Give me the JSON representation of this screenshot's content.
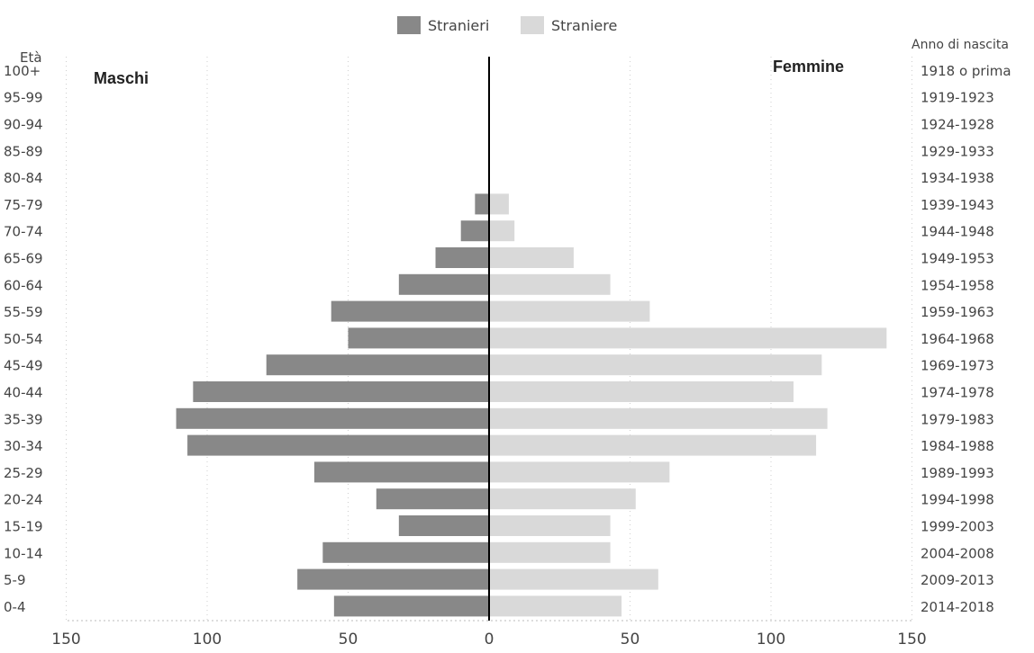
{
  "chart_data": {
    "type": "bar",
    "orientation": "horizontal",
    "subtype": "population-pyramid",
    "legend": {
      "position": "top-center",
      "items": [
        {
          "label": "Stranieri",
          "color": "#888888"
        },
        {
          "label": "Straniere",
          "color": "#d9d9d9"
        }
      ]
    },
    "left_axis_title": "Età",
    "right_axis_title": "Anno di nascita",
    "left_group_label": "Maschi",
    "right_group_label": "Femmine",
    "categories": [
      "0-4",
      "5-9",
      "10-14",
      "15-19",
      "20-24",
      "25-29",
      "30-34",
      "35-39",
      "40-44",
      "45-49",
      "50-54",
      "55-59",
      "60-64",
      "65-69",
      "70-74",
      "75-79",
      "80-84",
      "85-89",
      "90-94",
      "95-99",
      "100+"
    ],
    "birth_years": [
      "2014-2018",
      "2009-2013",
      "2004-2008",
      "1999-2003",
      "1994-1998",
      "1989-1993",
      "1984-1988",
      "1979-1983",
      "1974-1978",
      "1969-1973",
      "1964-1968",
      "1959-1963",
      "1954-1958",
      "1949-1953",
      "1944-1948",
      "1939-1943",
      "1934-1938",
      "1929-1933",
      "1924-1928",
      "1919-1923",
      "1918 o prima"
    ],
    "series": [
      {
        "name": "Stranieri",
        "side": "left",
        "color": "#888888",
        "values": [
          55,
          68,
          59,
          32,
          40,
          62,
          107,
          111,
          105,
          79,
          50,
          56,
          32,
          19,
          10,
          5,
          0,
          0,
          0,
          0,
          0
        ]
      },
      {
        "name": "Straniere",
        "side": "right",
        "color": "#d9d9d9",
        "values": [
          47,
          60,
          43,
          43,
          52,
          64,
          116,
          120,
          108,
          118,
          141,
          57,
          43,
          30,
          9,
          7,
          0,
          0,
          0,
          0,
          0
        ]
      }
    ],
    "x_ticks": [
      "150",
      "100",
      "50",
      "0",
      "50",
      "100",
      "150"
    ],
    "xlim": [
      -150,
      150
    ],
    "grid": "vertical-dotted"
  }
}
